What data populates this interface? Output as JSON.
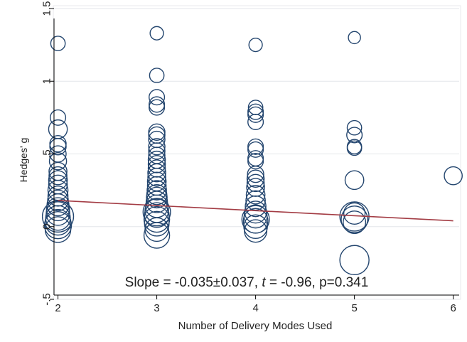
{
  "chart_data": {
    "type": "scatter",
    "title": "",
    "xlabel": "Number of Delivery Modes Used",
    "ylabel": "Hedges' g",
    "xlim": [
      1.96,
      6.06
    ],
    "ylim": [
      -0.5,
      1.5
    ],
    "x_ticks": [
      2,
      3,
      4,
      5,
      6
    ],
    "y_ticks": [
      -0.5,
      0,
      0.5,
      1,
      1.5
    ],
    "y_tick_labels": [
      "-.5",
      "0",
      ".5",
      "1",
      "1.5"
    ],
    "grid": true,
    "legend": "none",
    "marker": "hollow circle, size proportional to study weight",
    "colors": {
      "marker": "#23456e",
      "fit_line": "#a33c44",
      "grid": "#e3e6ea",
      "axis": "#000000"
    },
    "points": [
      {
        "x": 2,
        "y": 1.26,
        "w": 0.05
      },
      {
        "x": 2,
        "y": 0.75,
        "w": 0.06
      },
      {
        "x": 2,
        "y": 0.67,
        "w": 0.1
      },
      {
        "x": 2,
        "y": 0.57,
        "w": 0.07
      },
      {
        "x": 2,
        "y": 0.55,
        "w": 0.07
      },
      {
        "x": 2,
        "y": 0.5,
        "w": 0.07
      },
      {
        "x": 2,
        "y": 0.45,
        "w": 0.08
      },
      {
        "x": 2,
        "y": 0.38,
        "w": 0.09
      },
      {
        "x": 2,
        "y": 0.35,
        "w": 0.09
      },
      {
        "x": 2,
        "y": 0.32,
        "w": 0.1
      },
      {
        "x": 2,
        "y": 0.29,
        "w": 0.1
      },
      {
        "x": 2,
        "y": 0.25,
        "w": 0.12
      },
      {
        "x": 2,
        "y": 0.21,
        "w": 0.12
      },
      {
        "x": 2,
        "y": 0.18,
        "w": 0.13
      },
      {
        "x": 2,
        "y": 0.15,
        "w": 0.15
      },
      {
        "x": 2,
        "y": 0.12,
        "w": 0.17
      },
      {
        "x": 2,
        "y": 0.09,
        "w": 0.18
      },
      {
        "x": 2,
        "y": 0.06,
        "w": 0.2
      },
      {
        "x": 2,
        "y": 0.03,
        "w": 0.22
      },
      {
        "x": 2,
        "y": 0.07,
        "w": 0.35
      },
      {
        "x": 2,
        "y": 0.01,
        "w": 0.25
      },
      {
        "x": 2,
        "y": -0.02,
        "w": 0.22
      },
      {
        "x": 3,
        "y": 1.33,
        "w": 0.04
      },
      {
        "x": 3,
        "y": 1.04,
        "w": 0.05
      },
      {
        "x": 3,
        "y": 0.89,
        "w": 0.06
      },
      {
        "x": 3,
        "y": 0.84,
        "w": 0.06
      },
      {
        "x": 3,
        "y": 0.82,
        "w": 0.06
      },
      {
        "x": 3,
        "y": 0.65,
        "w": 0.07
      },
      {
        "x": 3,
        "y": 0.63,
        "w": 0.07
      },
      {
        "x": 3,
        "y": 0.6,
        "w": 0.07
      },
      {
        "x": 3,
        "y": 0.55,
        "w": 0.07
      },
      {
        "x": 3,
        "y": 0.52,
        "w": 0.07
      },
      {
        "x": 3,
        "y": 0.49,
        "w": 0.07
      },
      {
        "x": 3,
        "y": 0.46,
        "w": 0.08
      },
      {
        "x": 3,
        "y": 0.43,
        "w": 0.08
      },
      {
        "x": 3,
        "y": 0.4,
        "w": 0.08
      },
      {
        "x": 3,
        "y": 0.37,
        "w": 0.09
      },
      {
        "x": 3,
        "y": 0.34,
        "w": 0.09
      },
      {
        "x": 3,
        "y": 0.31,
        "w": 0.1
      },
      {
        "x": 3,
        "y": 0.28,
        "w": 0.1
      },
      {
        "x": 3,
        "y": 0.25,
        "w": 0.11
      },
      {
        "x": 3,
        "y": 0.22,
        "w": 0.12
      },
      {
        "x": 3,
        "y": 0.2,
        "w": 0.13
      },
      {
        "x": 3,
        "y": 0.17,
        "w": 0.14
      },
      {
        "x": 3,
        "y": 0.14,
        "w": 0.16
      },
      {
        "x": 3,
        "y": 0.11,
        "w": 0.18
      },
      {
        "x": 3,
        "y": 0.08,
        "w": 0.2
      },
      {
        "x": 3,
        "y": 0.1,
        "w": 0.26
      },
      {
        "x": 3,
        "y": 0.05,
        "w": 0.22
      },
      {
        "x": 3,
        "y": 0.02,
        "w": 0.2
      },
      {
        "x": 3,
        "y": -0.02,
        "w": 0.18
      },
      {
        "x": 3,
        "y": -0.06,
        "w": 0.22
      },
      {
        "x": 4,
        "y": 1.25,
        "w": 0.04
      },
      {
        "x": 4,
        "y": 0.82,
        "w": 0.05
      },
      {
        "x": 4,
        "y": 0.79,
        "w": 0.06
      },
      {
        "x": 4,
        "y": 0.77,
        "w": 0.06
      },
      {
        "x": 4,
        "y": 0.72,
        "w": 0.06
      },
      {
        "x": 4,
        "y": 0.55,
        "w": 0.06
      },
      {
        "x": 4,
        "y": 0.53,
        "w": 0.06
      },
      {
        "x": 4,
        "y": 0.47,
        "w": 0.06
      },
      {
        "x": 4,
        "y": 0.45,
        "w": 0.06
      },
      {
        "x": 4,
        "y": 0.36,
        "w": 0.07
      },
      {
        "x": 4,
        "y": 0.33,
        "w": 0.08
      },
      {
        "x": 4,
        "y": 0.3,
        "w": 0.08
      },
      {
        "x": 4,
        "y": 0.27,
        "w": 0.09
      },
      {
        "x": 4,
        "y": 0.22,
        "w": 0.1
      },
      {
        "x": 4,
        "y": 0.18,
        "w": 0.11
      },
      {
        "x": 4,
        "y": 0.14,
        "w": 0.13
      },
      {
        "x": 4,
        "y": 0.1,
        "w": 0.15
      },
      {
        "x": 4,
        "y": 0.07,
        "w": 0.17
      },
      {
        "x": 4,
        "y": 0.04,
        "w": 0.2
      },
      {
        "x": 4,
        "y": 0.05,
        "w": 0.26
      },
      {
        "x": 4,
        "y": 0.0,
        "w": 0.18
      },
      {
        "x": 4,
        "y": -0.03,
        "w": 0.16
      },
      {
        "x": 5,
        "y": 1.3,
        "w": 0.03
      },
      {
        "x": 5,
        "y": 0.68,
        "w": 0.05
      },
      {
        "x": 5,
        "y": 0.63,
        "w": 0.06
      },
      {
        "x": 5,
        "y": 0.55,
        "w": 0.05
      },
      {
        "x": 5,
        "y": 0.54,
        "w": 0.05
      },
      {
        "x": 5,
        "y": 0.32,
        "w": 0.1
      },
      {
        "x": 5,
        "y": 0.09,
        "w": 0.14
      },
      {
        "x": 5,
        "y": 0.07,
        "w": 0.3
      },
      {
        "x": 5,
        "y": 0.05,
        "w": 0.24
      },
      {
        "x": 5,
        "y": 0.03,
        "w": 0.16
      },
      {
        "x": 5,
        "y": -0.23,
        "w": 0.3
      },
      {
        "x": 6,
        "y": 0.35,
        "w": 0.09
      }
    ],
    "fit_line": {
      "x": [
        2,
        6
      ],
      "y": [
        0.18,
        0.04
      ]
    },
    "annotation": {
      "prefix": "Slope = -0.035±0.037, ",
      "italic": "t",
      "suffix": " = -0.96, p=0.341"
    }
  }
}
